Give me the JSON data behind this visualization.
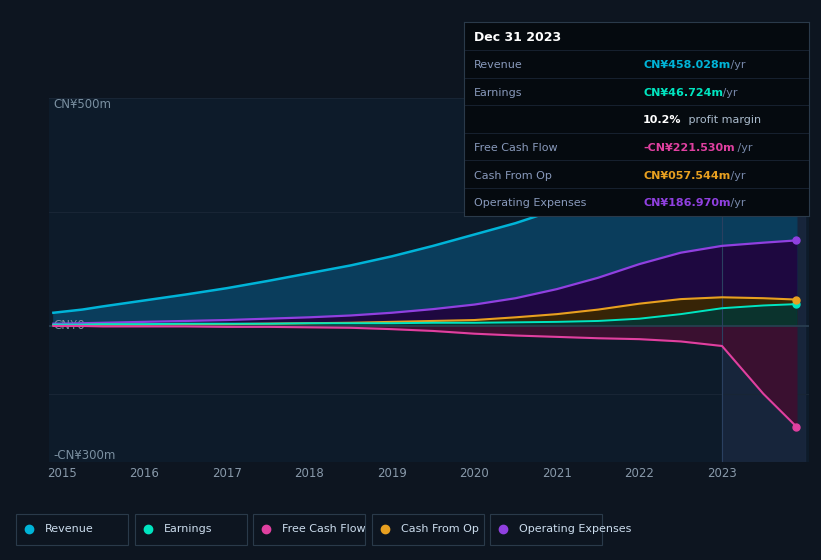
{
  "background_color": "#0d1520",
  "chart_bg": "#0d1b2a",
  "years": [
    2014.9,
    2015.0,
    2015.25,
    2015.5,
    2016.0,
    2016.5,
    2017.0,
    2017.5,
    2018.0,
    2018.5,
    2019.0,
    2019.5,
    2020.0,
    2020.5,
    2021.0,
    2021.5,
    2022.0,
    2022.5,
    2023.0,
    2023.5,
    2023.9
  ],
  "revenue": [
    28,
    30,
    35,
    42,
    55,
    68,
    82,
    98,
    115,
    132,
    152,
    175,
    200,
    225,
    255,
    290,
    330,
    375,
    420,
    450,
    458
  ],
  "earnings": [
    2,
    2,
    2,
    3,
    3,
    4,
    4,
    4,
    5,
    5,
    5,
    6,
    6,
    7,
    8,
    10,
    15,
    25,
    38,
    44,
    47
  ],
  "free_cash_flow": [
    -1,
    -1,
    -1,
    -2,
    -2,
    -2,
    -3,
    -3,
    -4,
    -5,
    -8,
    -12,
    -18,
    -22,
    -25,
    -28,
    -30,
    -35,
    -45,
    -150,
    -222
  ],
  "cash_from_op": [
    1,
    1,
    1,
    2,
    2,
    3,
    3,
    4,
    5,
    6,
    8,
    10,
    12,
    18,
    25,
    35,
    48,
    58,
    62,
    60,
    57
  ],
  "operating_expenses": [
    4,
    4,
    5,
    6,
    8,
    10,
    12,
    15,
    18,
    22,
    28,
    36,
    46,
    60,
    80,
    105,
    135,
    160,
    175,
    182,
    187
  ],
  "revenue_color": "#00b4d8",
  "earnings_color": "#00e5c0",
  "free_cash_flow_color": "#e040a0",
  "cash_from_op_color": "#e8a020",
  "operating_expenses_color": "#9040e0",
  "revenue_fill": "#0a3d5c",
  "earnings_fill": "#003838",
  "free_cash_flow_fill": "#3a1030",
  "cash_from_op_fill": "#3a2800",
  "operating_expenses_fill": "#1e0840",
  "ylim_top": 500,
  "ylim_bottom": -300,
  "xticks": [
    2015,
    2016,
    2017,
    2018,
    2019,
    2020,
    2021,
    2022,
    2023
  ],
  "annotation_date": "Dec 31 2023",
  "annotation_revenue_val": "CN¥458.028m",
  "annotation_earnings_val": "CN¥46.724m",
  "annotation_profit_margin": "10.2%",
  "annotation_profit_margin_label": " profit margin",
  "annotation_fcf_val": "-CN¥221.530m",
  "annotation_cashop_val": "CN¥057.544m",
  "annotation_opex_val": "CN¥186.970m",
  "legend_labels": [
    "Revenue",
    "Earnings",
    "Free Cash Flow",
    "Cash From Op",
    "Operating Expenses"
  ],
  "legend_colors": [
    "#00b4d8",
    "#00e5c0",
    "#e040a0",
    "#e8a020",
    "#9040e0"
  ]
}
